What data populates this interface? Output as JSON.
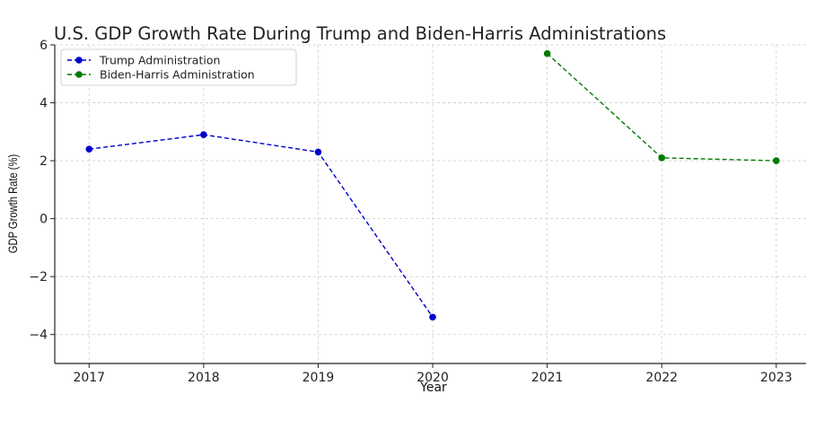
{
  "chart_data": {
    "type": "line",
    "title": "U.S. GDP Growth Rate During Trump and Biden-Harris Administrations",
    "xlabel": "Year",
    "ylabel": "GDP Growth Rate (%)",
    "x_ticks": [
      "2017",
      "2018",
      "2019",
      "2020",
      "2021",
      "2022",
      "2023"
    ],
    "y_ticks": [
      6,
      4,
      2,
      0,
      -2,
      -4
    ],
    "xlim": [
      2016.7,
      2023.26
    ],
    "ylim": [
      -5,
      6
    ],
    "grid": true,
    "legend_position": "top-left",
    "series": [
      {
        "name": "Trump Administration",
        "color": "#0000cc",
        "line_style": "dashed",
        "marker": "circle",
        "x": [
          2017,
          2018,
          2019,
          2020
        ],
        "y": [
          2.4,
          2.9,
          2.3,
          -3.4
        ]
      },
      {
        "name": "Biden-Harris Administration",
        "color": "#007a00",
        "line_style": "dashed",
        "marker": "circle",
        "x": [
          2021,
          2022,
          2023
        ],
        "y": [
          5.7,
          2.1,
          2.0
        ]
      }
    ]
  }
}
